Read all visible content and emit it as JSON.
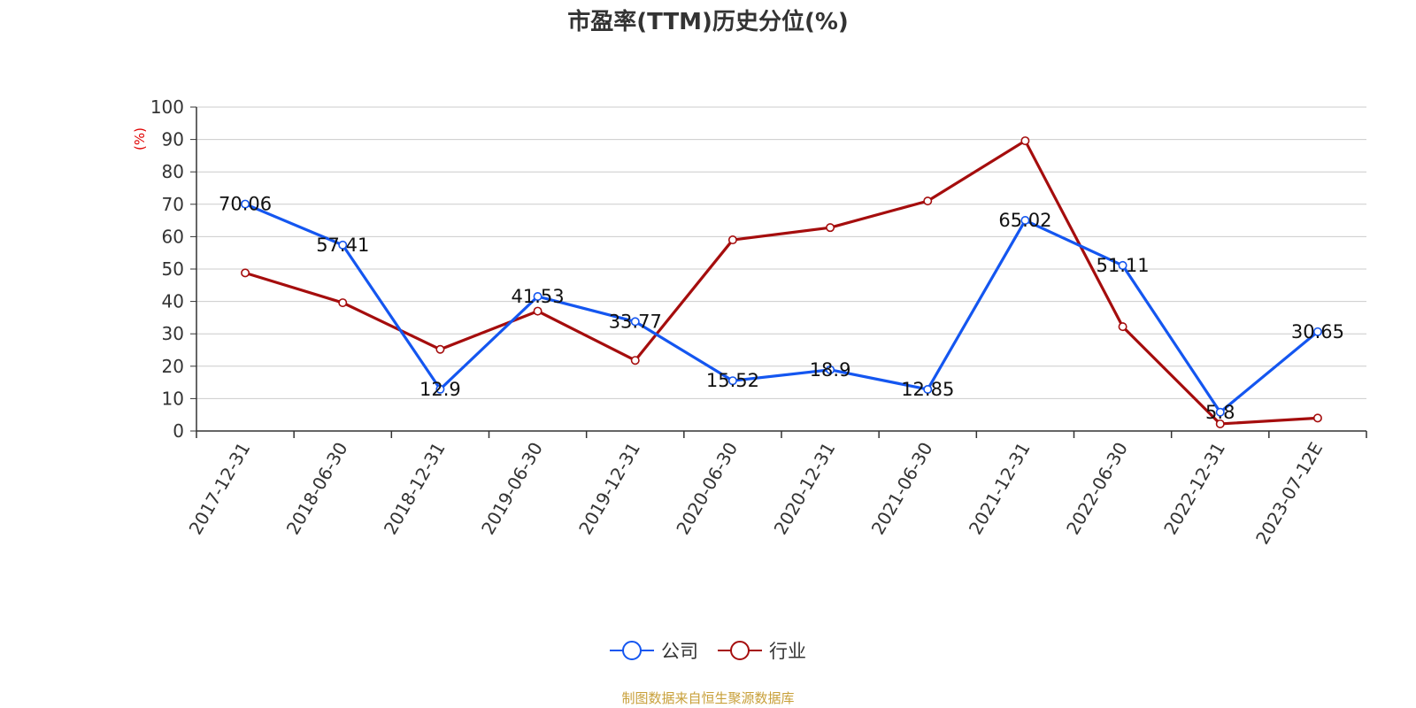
{
  "chart_data": {
    "type": "line",
    "title": "市盈率(TTM)历史分位(%)",
    "ylabel": "(%)",
    "xlabel": "",
    "ylim": [
      0,
      100
    ],
    "yticks": [
      0,
      10,
      20,
      30,
      40,
      50,
      60,
      70,
      80,
      90,
      100
    ],
    "grid": true,
    "legend_position": "bottom",
    "categories": [
      "2017-12-31",
      "2018-06-30",
      "2018-12-31",
      "2019-06-30",
      "2019-12-31",
      "2020-06-30",
      "2020-12-31",
      "2021-06-30",
      "2021-12-31",
      "2022-06-30",
      "2022-12-31",
      "2023-07-12E"
    ],
    "series": [
      {
        "name": "公司",
        "color": "#1456f0",
        "values": [
          70.06,
          57.41,
          12.9,
          41.53,
          33.77,
          15.52,
          18.9,
          12.85,
          65.02,
          51.11,
          5.8,
          30.65
        ],
        "labels": [
          "70.06",
          "57.41",
          "12.9",
          "41.53",
          "33.77",
          "15.52",
          "18.9",
          "12.85",
          "65.02",
          "51.11",
          "5.8",
          "30.65"
        ],
        "show_labels": true
      },
      {
        "name": "行业",
        "color": "#a50d0d",
        "values": [
          48.8,
          39.6,
          25.2,
          37.0,
          21.8,
          59.0,
          62.8,
          71.0,
          89.6,
          32.2,
          2.2,
          4.0
        ],
        "show_labels": false
      }
    ]
  },
  "footer": {
    "source": "制图数据来自恒生聚源数据库",
    "source_color": "#c8a03a"
  },
  "colors": {
    "ylabel": "#e00000",
    "axis": "#333333",
    "grid": "#cccccc"
  }
}
